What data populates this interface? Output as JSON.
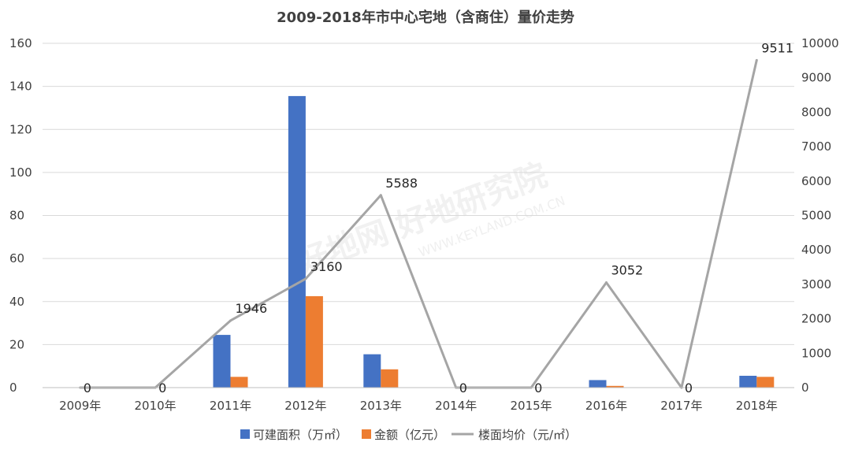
{
  "chart_data": {
    "type": "bar",
    "title": "2009-2018年市中心宅地（含商住）量价走势",
    "categories": [
      "2009年",
      "2010年",
      "2011年",
      "2012年",
      "2013年",
      "2014年",
      "2015年",
      "2016年",
      "2017年",
      "2018年"
    ],
    "series": [
      {
        "name": "可建面积（万㎡）",
        "type": "bar",
        "axis": "left",
        "color": "#4472C4",
        "values": [
          0,
          0,
          24.5,
          135.5,
          15.5,
          0,
          0,
          3.5,
          0,
          5.5
        ]
      },
      {
        "name": "金额（亿元）",
        "type": "bar",
        "axis": "left",
        "color": "#ED7D31",
        "values": [
          0,
          0,
          5,
          42.5,
          8.5,
          0,
          0,
          0.8,
          0,
          5
        ]
      },
      {
        "name": "楼面均价（元/㎡）",
        "type": "line",
        "axis": "right",
        "color": "#A5A5A5",
        "values": [
          0,
          0,
          1946,
          3160,
          5588,
          0,
          0,
          3052,
          0,
          9511
        ],
        "labels": [
          "0",
          "0",
          "1946",
          "3160",
          "5588",
          "0",
          "0",
          "3052",
          "0",
          "9511"
        ]
      }
    ],
    "ylim_left": [
      0,
      160
    ],
    "yticks_left": [
      "0",
      "20",
      "40",
      "60",
      "80",
      "100",
      "120",
      "140",
      "160"
    ],
    "ylim_right": [
      0,
      10000
    ],
    "yticks_right": [
      "0",
      "1000",
      "2000",
      "3000",
      "4000",
      "5000",
      "6000",
      "7000",
      "8000",
      "9000",
      "10000"
    ],
    "grid": true,
    "legend": "bottom"
  },
  "watermark": {
    "text": "好地网 好地研究院",
    "url": "WWW.KEYLAND.COM.CN"
  }
}
